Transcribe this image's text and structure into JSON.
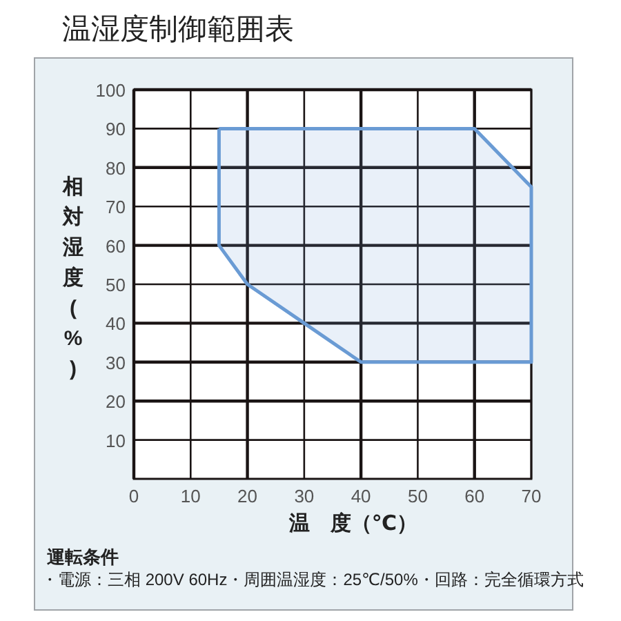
{
  "chart_data": {
    "type": "area",
    "title": "温湿度制御範囲表",
    "xlabel": "温　度（℃）",
    "ylabel": "相対湿度(%)",
    "annotations": [
      "運転条件",
      "・電源：三相 200V 60Hz・周囲温湿度：25℃/50%・回路：完全循環方式"
    ],
    "series": [
      {
        "color": "#6a9bd4",
        "x": [
          15,
          60,
          70,
          70,
          40,
          30,
          20,
          15,
          15
        ],
        "values": [
          90,
          90,
          75,
          30,
          30,
          40,
          50,
          60,
          90
        ]
      }
    ],
    "xlim": [
      0,
      70
    ],
    "xticks": [
      0,
      10,
      20,
      30,
      40,
      50,
      60,
      70
    ],
    "ylim": [
      0,
      100
    ],
    "yticks": [
      10,
      20,
      30,
      40,
      50,
      60,
      70,
      80,
      90,
      100
    ],
    "grid": true
  }
}
